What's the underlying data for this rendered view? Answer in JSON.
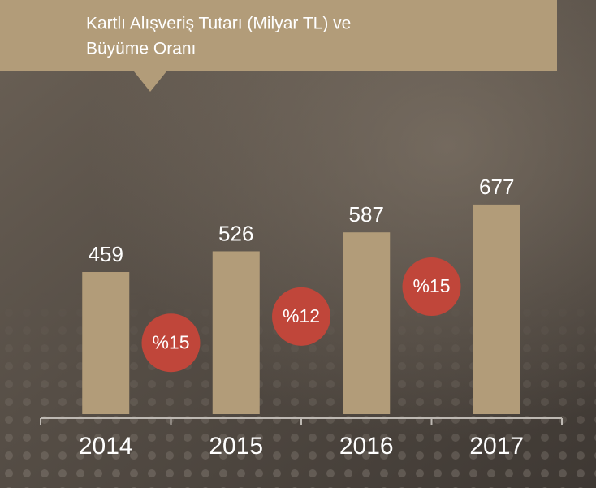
{
  "chart_data": {
    "type": "bar",
    "title": [
      "Kartlı Alışveriş Tutarı (Milyar TL) ve",
      "Büyüme Oranı"
    ],
    "categories": [
      "2014",
      "2015",
      "2016",
      "2017"
    ],
    "values": [
      459,
      526,
      587,
      677
    ],
    "color": "#b29c79",
    "ylim": [
      0,
      800
    ],
    "growth": {
      "values": [
        15,
        12,
        15
      ],
      "value_labels": [
        "%15",
        "%12",
        "%15"
      ],
      "color": "#c0463a"
    }
  }
}
